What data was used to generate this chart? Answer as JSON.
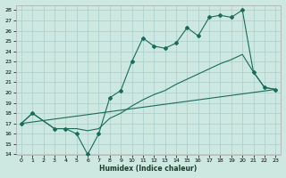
{
  "xlabel": "Humidex (Indice chaleur)",
  "bg_color": "#cce8e0",
  "grid_color": "#b0d8d0",
  "line_color": "#1a6b5a",
  "xlim": [
    -0.5,
    23.5
  ],
  "ylim": [
    14,
    28.5
  ],
  "xticks": [
    0,
    1,
    2,
    3,
    4,
    5,
    6,
    7,
    8,
    9,
    10,
    11,
    12,
    13,
    14,
    15,
    16,
    17,
    18,
    19,
    20,
    21,
    22,
    23
  ],
  "yticks": [
    14,
    15,
    16,
    17,
    18,
    19,
    20,
    21,
    22,
    23,
    24,
    25,
    26,
    27,
    28
  ],
  "line1_x": [
    0,
    1,
    3,
    4,
    5,
    6,
    7,
    8,
    9,
    10,
    11,
    12,
    13,
    14,
    15,
    16,
    17,
    18,
    19,
    20,
    21,
    22,
    23
  ],
  "line1_y": [
    17.0,
    18.0,
    16.5,
    16.5,
    16.0,
    14.0,
    16.0,
    19.5,
    20.2,
    23.0,
    25.3,
    24.5,
    24.3,
    24.8,
    26.3,
    25.5,
    27.3,
    27.5,
    27.3,
    28.0,
    22.0,
    20.5,
    20.3
  ],
  "line2_x": [
    0,
    1,
    3,
    4,
    5,
    6,
    7,
    8,
    9,
    10,
    11,
    12,
    13,
    14,
    15,
    16,
    17,
    18,
    19,
    20,
    21,
    22,
    23
  ],
  "line2_y": [
    17.0,
    18.0,
    16.5,
    16.5,
    16.5,
    16.3,
    16.5,
    17.5,
    18.0,
    18.7,
    19.3,
    19.8,
    20.2,
    20.8,
    21.3,
    21.8,
    22.3,
    22.8,
    23.2,
    23.7,
    22.0,
    20.5,
    20.3
  ],
  "line3_x": [
    0,
    23
  ],
  "line3_y": [
    17.0,
    20.3
  ]
}
